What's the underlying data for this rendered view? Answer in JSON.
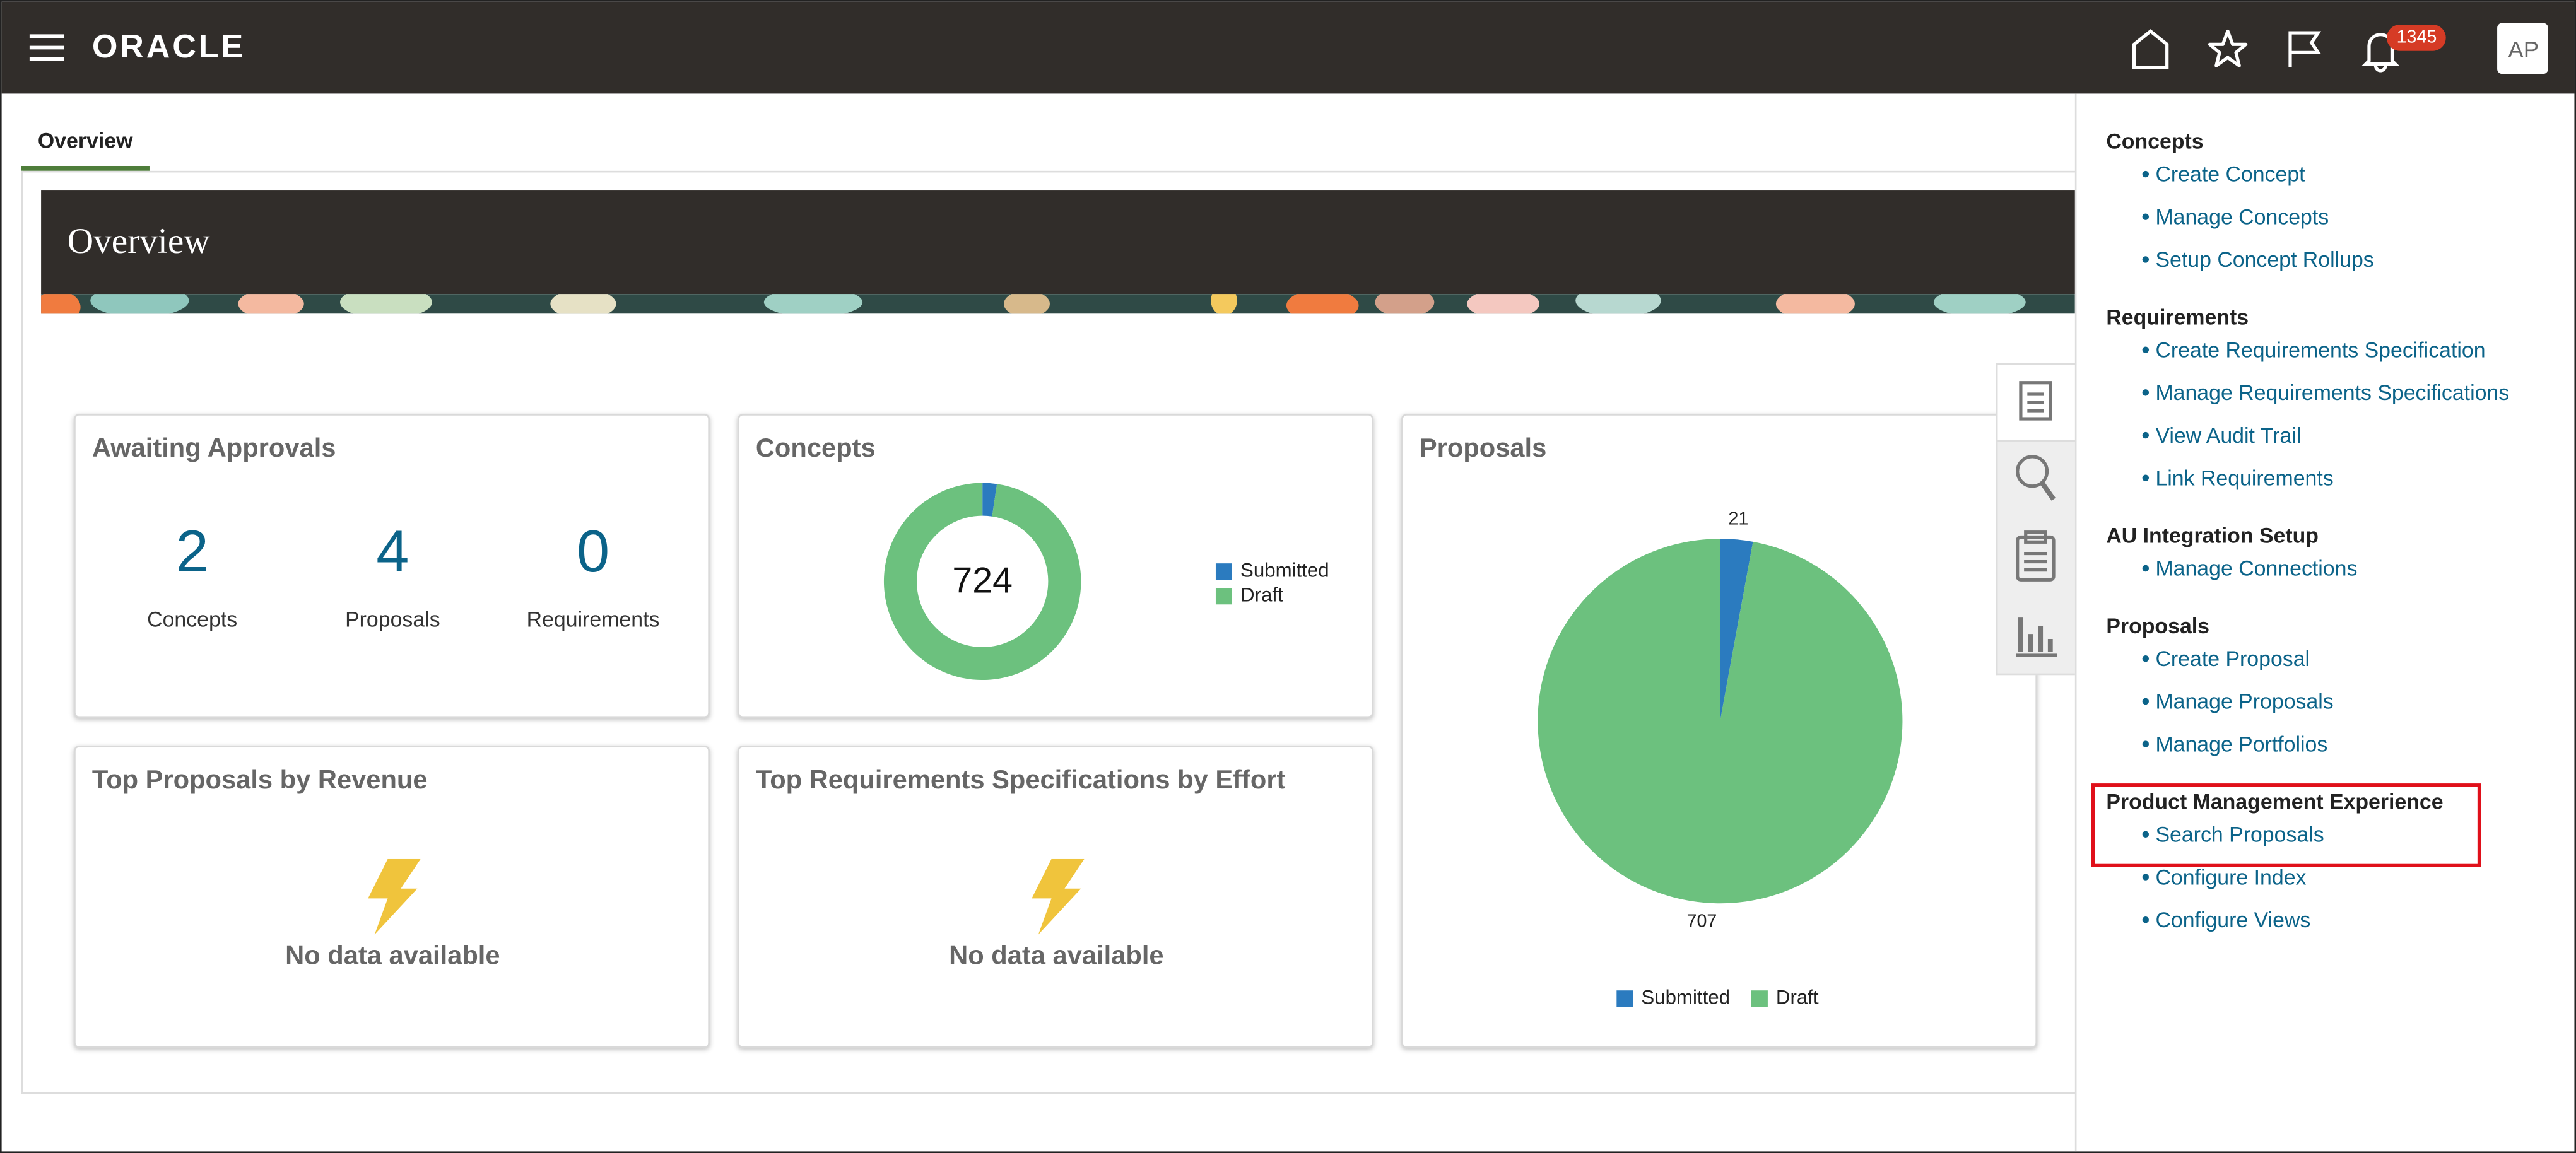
{
  "header": {
    "logo": "ORACLE",
    "notifications": 1345,
    "avatar": "AP"
  },
  "tabs": [
    "Overview"
  ],
  "banner": {
    "title": "Overview"
  },
  "cards": {
    "awaiting": {
      "title": "Awaiting Approvals",
      "items": [
        {
          "count": 2,
          "label": "Concepts"
        },
        {
          "count": 4,
          "label": "Proposals"
        },
        {
          "count": 0,
          "label": "Requirements"
        }
      ]
    },
    "concepts": {
      "title": "Concepts",
      "type": "donut",
      "total": 724,
      "series": [
        {
          "name": "Submitted",
          "color": "#2b7bbf",
          "value": 17
        },
        {
          "name": "Draft",
          "color": "#6cc17e",
          "value": 707
        }
      ]
    },
    "proposals": {
      "title": "Proposals",
      "type": "pie",
      "series": [
        {
          "name": "Submitted",
          "color": "#2b7bbf",
          "value": 21
        },
        {
          "name": "Draft",
          "color": "#6cc17e",
          "value": 707
        }
      ]
    },
    "top_revenue": {
      "title": "Top Proposals by Revenue",
      "message": "No data available"
    },
    "top_effort": {
      "title": "Top Requirements Specifications by Effort",
      "message": "No data available"
    }
  },
  "side_panel": {
    "sections": [
      {
        "title": "Concepts",
        "links": [
          "Create Concept",
          "Manage Concepts",
          "Setup Concept Rollups"
        ]
      },
      {
        "title": "Requirements",
        "links": [
          "Create Requirements Specification",
          "Manage Requirements Specifications",
          "View Audit Trail",
          "Link Requirements"
        ]
      },
      {
        "title": "AU Integration Setup",
        "links": [
          "Manage Connections"
        ]
      },
      {
        "title": "Proposals",
        "links": [
          "Create Proposal",
          "Manage Proposals",
          "Manage Portfolios"
        ]
      },
      {
        "title": "Product Management Experience",
        "links": [
          "Search Proposals",
          "Configure Index",
          "Configure Views"
        ]
      }
    ]
  }
}
